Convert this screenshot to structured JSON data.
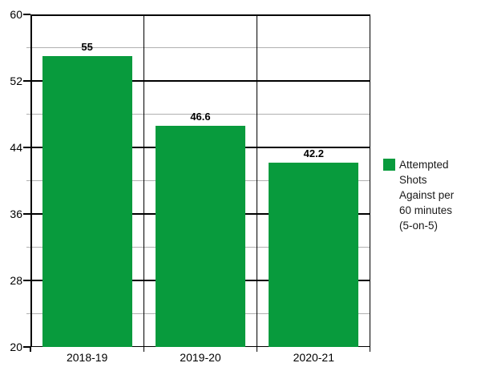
{
  "chart_data": {
    "type": "bar",
    "title": "",
    "categories": [
      "2018-19",
      "2019-20",
      "2020-21"
    ],
    "values": [
      55,
      46.6,
      42.2
    ],
    "series": [
      {
        "name": "Attempted Shots Against per 60 minutes (5-on-5)",
        "values": [
          55,
          46.6,
          42.2
        ]
      }
    ],
    "xlabel": "",
    "ylabel": "",
    "ylim": [
      20,
      60
    ],
    "yticks": [
      20,
      28,
      36,
      44,
      52,
      60
    ],
    "minor_yticks": [
      24,
      32,
      40,
      48,
      56
    ],
    "grid": true,
    "legend_position": "right",
    "bar_color": "#089b3d"
  },
  "legend": {
    "lines": [
      "Attempted",
      "Shots",
      "Against per",
      "60 minutes",
      "(5-on-5)"
    ],
    "swatch_color": "#089b3d"
  },
  "colors": {
    "bar": "#089b3d",
    "major_grid": "#000000",
    "minor_grid": "#b0b0b0",
    "background": "#ffffff",
    "text": "#000000"
  }
}
